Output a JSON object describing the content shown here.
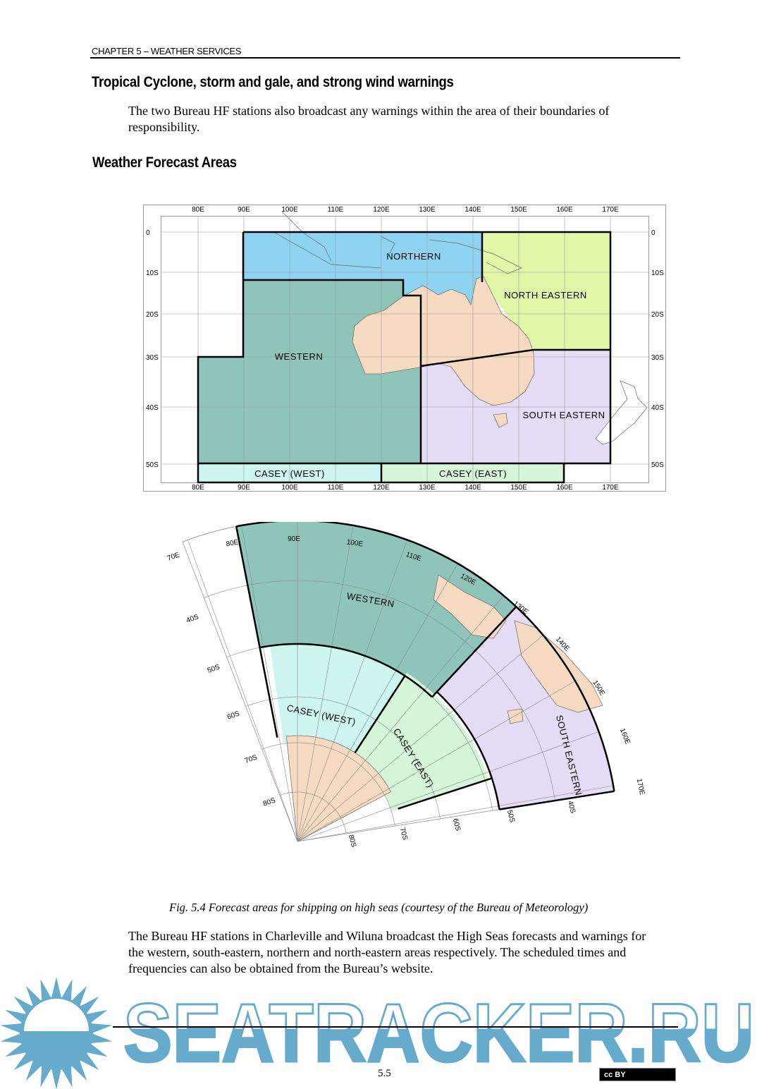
{
  "header": {
    "chapter": "CHAPTER 5 – WEATHER SERVICES"
  },
  "sections": [
    {
      "title": "Tropical Cyclone, storm and gale, and strong wind warnings",
      "body": "The two Bureau HF stations also broadcast any warnings within the area of their boundaries of responsibility."
    },
    {
      "title": "Weather Forecast Areas"
    }
  ],
  "map_rect": {
    "lon_labels": [
      "80E",
      "90E",
      "100E",
      "110E",
      "120E",
      "130E",
      "140E",
      "150E",
      "160E",
      "170E"
    ],
    "lat_labels": [
      "0",
      "10S",
      "20S",
      "30S",
      "40S",
      "50S"
    ],
    "regions": {
      "northern": "NORTHERN",
      "north_eastern": "NORTH EASTERN",
      "western": "WESTERN",
      "south_eastern": "SOUTH EASTERN",
      "casey_west": "CASEY (WEST)",
      "casey_east": "CASEY (EAST)"
    },
    "colors": {
      "northern": "#8ed3f2",
      "north_eastern": "#e1f7a8",
      "western": "#8fc4bb",
      "south_eastern": "#e6dcf6",
      "casey_west": "#cdf6f1",
      "casey_east": "#d5f6d8",
      "land": "#f6dbc2"
    }
  },
  "map_polar": {
    "lon_labels": [
      "70E",
      "80E",
      "90E",
      "100E",
      "110E",
      "120E",
      "130E",
      "140E",
      "150E",
      "160E",
      "170E"
    ],
    "lat_labels_left": [
      "40S",
      "50S",
      "60S",
      "70S",
      "80S"
    ],
    "lat_labels_bottom": [
      "80S",
      "70S",
      "60S",
      "50S",
      "40S"
    ],
    "regions": {
      "western": "WESTERN",
      "casey_west": "CASEY (WEST)",
      "casey_east": "CASEY (EAST)",
      "south_eastern": "SOUTH EASTERN"
    }
  },
  "caption": "Fig. 5.4 Forecast areas for shipping on high seas (courtesy of the Bureau of Meteorology)",
  "closing_paragraph": "The Bureau HF stations in Charleville and Wiluna broadcast the High Seas forecasts and warnings for the western, south-eastern, northern and north-eastern areas respectively. The scheduled times and frequencies can also be obtained from the Bureau’s website.",
  "footer": {
    "page_number": "5.5",
    "license_badge": "cc BY"
  },
  "watermark": {
    "text": "SEATRACKER.RU",
    "color": "#67abcc"
  }
}
